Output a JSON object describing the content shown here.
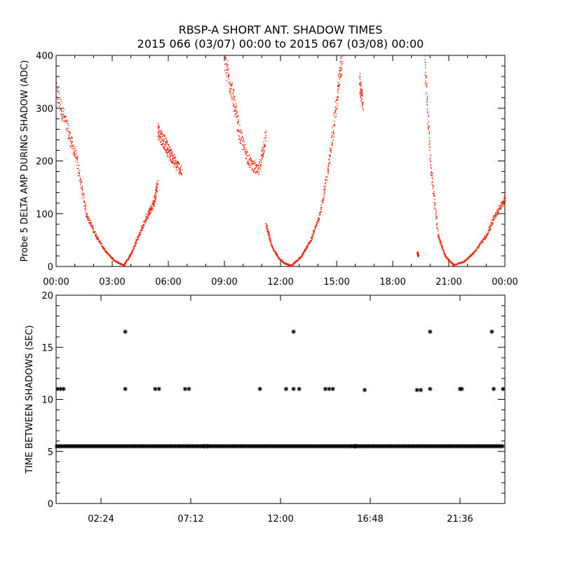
{
  "title": "RBSP-A SHORT ANT. SHADOW TIMES",
  "subtitle": "2015 066 (03/07) 00:00 to 2015 067 (03/08) 00:00",
  "chart_data": [
    {
      "type": "scatter",
      "ylabel": "Probe 5 DELTA AMP DURING SHADOW (ADC)",
      "xlim": [
        0,
        24
      ],
      "ylim": [
        0,
        400
      ],
      "x_tick_labels": [
        "00:00",
        "03:00",
        "06:00",
        "09:00",
        "12:00",
        "15:00",
        "18:00",
        "21:00",
        "00:00"
      ],
      "y_tick_labels": [
        "0",
        "100",
        "200",
        "300",
        "400"
      ],
      "color": "#e8250a",
      "segments": [
        {
          "x": [
            0.0,
            0.6,
            1.1,
            1.6,
            2.1,
            2.6,
            3.1,
            3.6
          ],
          "y": [
            330,
            260,
            200,
            100,
            60,
            30,
            12,
            3
          ]
        },
        {
          "x": [
            3.6,
            4.0,
            4.4,
            4.9,
            5.2,
            5.4
          ],
          "y": [
            3,
            25,
            60,
            100,
            120,
            160
          ]
        },
        {
          "x": [
            5.4,
            5.7,
            6.0,
            6.3,
            6.7
          ],
          "y": [
            260,
            240,
            220,
            200,
            180
          ]
        },
        {
          "x": [
            9.0,
            9.4,
            9.8,
            10.3,
            10.8,
            11.2
          ],
          "y": [
            390,
            330,
            250,
            200,
            180,
            250
          ]
        },
        {
          "x": [
            11.2,
            11.5,
            11.9,
            12.3,
            12.6
          ],
          "y": [
            80,
            40,
            15,
            5,
            2
          ]
        },
        {
          "x": [
            12.6,
            13.1,
            13.6,
            14.1,
            14.6,
            15.0,
            15.3
          ],
          "y": [
            3,
            20,
            50,
            100,
            200,
            320,
            400
          ]
        },
        {
          "x": [
            16.2,
            16.4
          ],
          "y": [
            350,
            310
          ]
        },
        {
          "x": [
            19.3,
            19.35
          ],
          "y": [
            28,
            20
          ]
        },
        {
          "x": [
            19.7,
            20.0,
            20.4,
            20.8,
            21.2
          ],
          "y": [
            390,
            200,
            60,
            20,
            5
          ]
        },
        {
          "x": [
            21.2,
            21.8,
            22.4,
            23.0,
            23.5,
            24.0
          ],
          "y": [
            3,
            10,
            30,
            60,
            100,
            130
          ]
        }
      ]
    },
    {
      "type": "scatter",
      "ylabel": "TIME BETWEEN SHADOWS (SEC)",
      "xlim": [
        0,
        24
      ],
      "ylim": [
        0,
        20
      ],
      "x_tick_labels": [
        "02:24",
        "07:12",
        "12:00",
        "16:48",
        "21:36"
      ],
      "x_tick_values": [
        2.4,
        7.2,
        12.0,
        16.8,
        21.6
      ],
      "y_tick_labels": [
        "0",
        "5",
        "10",
        "15",
        "20"
      ],
      "baseline": {
        "value": 5.5,
        "x_start": 0.0,
        "x_end": 24.0
      },
      "points": [
        {
          "x": 0.1,
          "y": 11
        },
        {
          "x": 0.25,
          "y": 11
        },
        {
          "x": 0.4,
          "y": 11
        },
        {
          "x": 3.7,
          "y": 16.5
        },
        {
          "x": 3.7,
          "y": 11
        },
        {
          "x": 5.3,
          "y": 11
        },
        {
          "x": 5.5,
          "y": 11
        },
        {
          "x": 6.9,
          "y": 11
        },
        {
          "x": 7.1,
          "y": 11
        },
        {
          "x": 7.9,
          "y": 5.5
        },
        {
          "x": 8.1,
          "y": 5.5
        },
        {
          "x": 10.9,
          "y": 11
        },
        {
          "x": 12.3,
          "y": 11
        },
        {
          "x": 12.7,
          "y": 16.5
        },
        {
          "x": 12.7,
          "y": 11
        },
        {
          "x": 13.0,
          "y": 11
        },
        {
          "x": 14.4,
          "y": 11
        },
        {
          "x": 14.6,
          "y": 11
        },
        {
          "x": 14.8,
          "y": 11
        },
        {
          "x": 15.8,
          "y": 5.5
        },
        {
          "x": 16.0,
          "y": 5.5
        },
        {
          "x": 16.5,
          "y": 10.9
        },
        {
          "x": 19.3,
          "y": 10.9
        },
        {
          "x": 19.5,
          "y": 10.9
        },
        {
          "x": 20.0,
          "y": 16.5
        },
        {
          "x": 20.0,
          "y": 11
        },
        {
          "x": 21.6,
          "y": 11
        },
        {
          "x": 21.7,
          "y": 11
        },
        {
          "x": 23.3,
          "y": 16.5
        },
        {
          "x": 23.4,
          "y": 11
        },
        {
          "x": 23.9,
          "y": 11
        }
      ]
    }
  ]
}
